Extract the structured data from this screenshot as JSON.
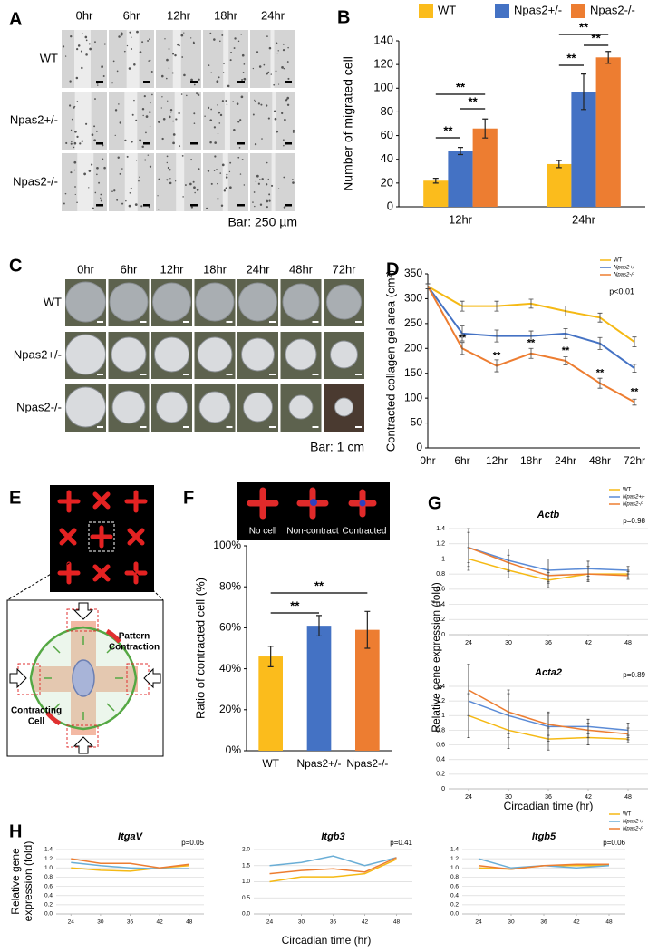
{
  "figure": {
    "panel_letters": [
      "A",
      "B",
      "C",
      "D",
      "E",
      "F",
      "G",
      "H"
    ],
    "A": {
      "columns": [
        "0hr",
        "6hr",
        "12hr",
        "18hr",
        "24hr"
      ],
      "rows": [
        "WT",
        "Npas2+/-",
        "Npas2-/-"
      ],
      "scale_bar": "Bar: 250 µm"
    },
    "C": {
      "columns": [
        "0hr",
        "6hr",
        "12hr",
        "18hr",
        "24hr",
        "48hr",
        "72hr"
      ],
      "rows": [
        "WT",
        "Npas2+/-",
        "Npas2-/-"
      ],
      "scale_bar": "Bar: 1 cm"
    },
    "E": {
      "pattern_label": [
        "Pattern",
        "Contraction"
      ],
      "cell_label": [
        "Contracting",
        "Cell"
      ]
    },
    "F": {
      "image_labels": [
        "No cell",
        "Non-contract",
        "Contracted"
      ]
    },
    "G": {
      "ylabel": "Relative gene expression (fold)",
      "xlabel": "Circadian time (hr)"
    },
    "H": {
      "ylabel": [
        "Relative gene",
        "expression (fold)"
      ],
      "xlabel": "Circadian time (hr)"
    }
  },
  "chart_data": [
    {
      "type": "bar",
      "categories": [
        "12hr",
        "24hr"
      ],
      "ylabel": "Number of migrated cell",
      "ylim": [
        0,
        140
      ],
      "yticks": [
        0,
        20,
        40,
        60,
        80,
        100,
        120,
        140
      ],
      "grid": false,
      "legend": "top",
      "series": [
        {
          "name": "WT",
          "color": "#fbbc1c",
          "values": [
            22,
            36
          ],
          "errors": [
            2,
            3
          ]
        },
        {
          "name": "Npas2+/-",
          "color": "#4472c4",
          "values": [
            47,
            97
          ],
          "errors": [
            3,
            15
          ]
        },
        {
          "name": "Npas2-/-",
          "color": "#ed7d31",
          "values": [
            66,
            126
          ],
          "errors": [
            8,
            5
          ]
        }
      ],
      "significance": [
        "**",
        "**",
        "**",
        "**",
        "**",
        "**"
      ]
    },
    {
      "type": "line",
      "categories": [
        "0hr",
        "6hr",
        "12hr",
        "18hr",
        "24hr",
        "48hr",
        "72hr"
      ],
      "ylabel": "Contracted collagen gel area (cm²)",
      "ylim": [
        0,
        350
      ],
      "yticks": [
        0,
        50,
        100,
        150,
        200,
        250,
        300,
        350
      ],
      "grid": false,
      "legend": "top-right",
      "annotations": [
        "p<0.01"
      ],
      "series": [
        {
          "name": "WT",
          "color": "#f5b914",
          "values": [
            325,
            285,
            285,
            290,
            275,
            262,
            213
          ],
          "errors": [
            5,
            10,
            10,
            9,
            10,
            9,
            10
          ]
        },
        {
          "name": "Npas2+/-",
          "color": "#4472c4",
          "values": [
            325,
            230,
            225,
            225,
            230,
            210,
            160
          ],
          "errors": [
            5,
            15,
            12,
            10,
            10,
            12,
            8
          ]
        },
        {
          "name": "Npas2-/-",
          "color": "#ed7d31",
          "values": [
            325,
            200,
            165,
            190,
            175,
            130,
            92
          ],
          "errors": [
            5,
            12,
            12,
            10,
            8,
            10,
            6
          ],
          "significance": [
            "**",
            "**",
            "**",
            "**",
            "**",
            "**"
          ]
        }
      ],
      "marked": [
        "**",
        "**",
        "**",
        "**",
        "**",
        "**"
      ]
    },
    {
      "type": "bar",
      "categories": [
        "WT",
        "Npas2+/-",
        "Npas2-/-"
      ],
      "values": [
        46,
        61,
        59
      ],
      "errors": [
        5,
        5,
        9
      ],
      "colors": [
        "#fbbc1c",
        "#4472c4",
        "#ed7d31"
      ],
      "ylabel": "Ratio of contracted cell (%)",
      "ylim": [
        0,
        100
      ],
      "yticks": [
        {
          "value": 0,
          "label": "0%"
        },
        {
          "value": 20,
          "label": "20%"
        },
        {
          "value": 40,
          "label": "40%"
        },
        {
          "value": 60,
          "label": "60%"
        },
        {
          "value": 80,
          "label": "80%"
        },
        {
          "value": 100,
          "label": "100%"
        }
      ],
      "grid": false,
      "significance": [
        "**",
        "**"
      ]
    },
    {
      "type": "line",
      "title": "Actb",
      "x": [
        24,
        30,
        36,
        42,
        48
      ],
      "xlim": [
        21,
        51
      ],
      "xticks": [
        24,
        30,
        36,
        42,
        48
      ],
      "ylim": [
        0,
        1.4
      ],
      "yticks": [
        0,
        0.2,
        0.4,
        0.6,
        0.8,
        1,
        1.2,
        1.4
      ],
      "grid": true,
      "legend": "top-right",
      "annotations": [
        "p=0.98"
      ],
      "series": [
        {
          "name": "WT",
          "color": "#f5b914",
          "values": [
            1.0,
            0.85,
            0.72,
            0.8,
            0.8
          ],
          "errors": [
            0.15,
            0.1,
            0.1,
            0.08,
            0.05
          ]
        },
        {
          "name": "Npas2+/-",
          "color": "#5b8bd6",
          "values": [
            1.15,
            0.98,
            0.85,
            0.87,
            0.85
          ],
          "errors": [
            0.25,
            0.15,
            0.15,
            0.1,
            0.05
          ]
        },
        {
          "name": "Npas2-/-",
          "color": "#ed7d31",
          "values": [
            1.15,
            0.95,
            0.78,
            0.8,
            0.78
          ],
          "errors": [
            0.2,
            0.1,
            0.1,
            0.1,
            0.05
          ]
        }
      ]
    },
    {
      "type": "line",
      "title": "Acta2",
      "x": [
        24,
        30,
        36,
        42,
        48
      ],
      "xlim": [
        21,
        51
      ],
      "xticks": [
        24,
        30,
        36,
        42,
        48
      ],
      "ylim": [
        0,
        1.4
      ],
      "yticks": [
        0,
        0.2,
        0.4,
        0.6,
        0.8,
        1,
        1.2,
        1.4
      ],
      "grid": true,
      "annotations": [
        "p=0.89"
      ],
      "series": [
        {
          "color": "#f5b914",
          "values": [
            1.0,
            0.8,
            0.68,
            0.7,
            0.68
          ],
          "errors": [
            0.3,
            0.25,
            0.15,
            0.1,
            0.05
          ]
        },
        {
          "color": "#5b8bd6",
          "values": [
            1.2,
            1.0,
            0.85,
            0.85,
            0.8
          ],
          "errors": [
            0.5,
            0.3,
            0.2,
            0.1,
            0.1
          ]
        },
        {
          "color": "#ed7d31",
          "values": [
            1.35,
            1.05,
            0.88,
            0.8,
            0.75
          ],
          "errors": [
            0.35,
            0.3,
            0.15,
            0.1,
            0.08
          ]
        }
      ]
    },
    {
      "type": "line",
      "title": "ItgaV",
      "x": [
        24,
        30,
        36,
        42,
        48
      ],
      "xlim": [
        21,
        51
      ],
      "xticks": [
        24,
        30,
        36,
        42,
        48
      ],
      "ylim": [
        0,
        1.4
      ],
      "yticks": [
        {
          "value": 0,
          "label": "0.0"
        },
        {
          "value": 0.2,
          "label": "0.2"
        },
        {
          "value": 0.4,
          "label": "0.4"
        },
        {
          "value": 0.6,
          "label": "0.6"
        },
        {
          "value": 0.8,
          "label": "0.8"
        },
        {
          "value": 1,
          "label": "1.0"
        },
        {
          "value": 1.2,
          "label": "1.2"
        },
        {
          "value": 1.4,
          "label": "1.4"
        }
      ],
      "grid": true,
      "annotations": [
        "p=0.05"
      ],
      "series": [
        {
          "color": "#f5b914",
          "values": [
            1.0,
            0.95,
            0.93,
            1.0,
            1.05
          ]
        },
        {
          "color": "#6aaed6",
          "values": [
            1.12,
            1.05,
            1.0,
            0.98,
            0.98
          ]
        },
        {
          "color": "#ed7d31",
          "values": [
            1.2,
            1.1,
            1.1,
            1.0,
            1.08
          ]
        }
      ]
    },
    {
      "type": "line",
      "title": "Itgb3",
      "x": [
        24,
        30,
        36,
        42,
        48
      ],
      "xlim": [
        21,
        51
      ],
      "xticks": [
        24,
        30,
        36,
        42,
        48
      ],
      "ylim": [
        0,
        2.0
      ],
      "yticks": [
        {
          "value": 0,
          "label": "0.0"
        },
        {
          "value": 0.5,
          "label": "0.5"
        },
        {
          "value": 1,
          "label": "1.0"
        },
        {
          "value": 1.5,
          "label": "1.5"
        },
        {
          "value": 2,
          "label": "2.0"
        }
      ],
      "grid": true,
      "annotations": [
        "p=0.41"
      ],
      "series": [
        {
          "color": "#f5b914",
          "values": [
            1.0,
            1.15,
            1.15,
            1.25,
            1.7
          ]
        },
        {
          "color": "#6aaed6",
          "values": [
            1.5,
            1.6,
            1.8,
            1.5,
            1.75
          ]
        },
        {
          "color": "#ed7d31",
          "values": [
            1.25,
            1.35,
            1.4,
            1.3,
            1.75
          ]
        }
      ]
    },
    {
      "type": "line",
      "title": "Itgb5",
      "x": [
        24,
        30,
        36,
        42,
        48
      ],
      "xlim": [
        21,
        51
      ],
      "xticks": [
        24,
        30,
        36,
        42,
        48
      ],
      "ylim": [
        0,
        1.4
      ],
      "yticks": [
        {
          "value": 0,
          "label": "0.0"
        },
        {
          "value": 0.2,
          "label": "0.2"
        },
        {
          "value": 0.4,
          "label": "0.4"
        },
        {
          "value": 0.6,
          "label": "0.6"
        },
        {
          "value": 0.8,
          "label": "0.8"
        },
        {
          "value": 1,
          "label": "1.0"
        },
        {
          "value": 1.2,
          "label": "1.2"
        },
        {
          "value": 1.4,
          "label": "1.4"
        }
      ],
      "grid": true,
      "legend": "top-right",
      "annotations": [
        "p=0.06"
      ],
      "series": [
        {
          "name": "WT",
          "color": "#f5b914",
          "values": [
            1.0,
            0.97,
            1.05,
            1.05,
            1.05
          ]
        },
        {
          "name": "Npas2+/-",
          "color": "#6aaed6",
          "values": [
            1.2,
            1.0,
            1.05,
            1.0,
            1.05
          ]
        },
        {
          "name": "Npas2-/-",
          "color": "#ed7d31",
          "values": [
            1.05,
            0.97,
            1.05,
            1.08,
            1.08
          ]
        }
      ]
    }
  ]
}
